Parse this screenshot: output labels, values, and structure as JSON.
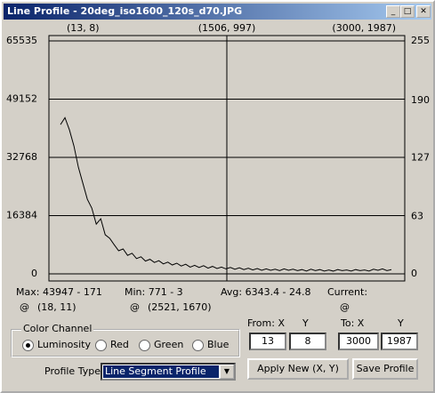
{
  "window": {
    "title": "Line Profile - 20deg_iso1600_120s_d70.JPG"
  },
  "chart_data": {
    "type": "line",
    "top_labels": [
      "(13, 8)",
      "(1506, 997)",
      "(3000, 1987)"
    ],
    "ylim": [
      0,
      65535
    ],
    "yticks": [
      0,
      16384,
      32768,
      49152,
      65535
    ],
    "y2lim": [
      0,
      255
    ],
    "y2ticks": [
      0,
      63,
      127,
      190,
      255
    ],
    "grid": true,
    "color": "#000000",
    "values": [
      42000,
      43947,
      40500,
      36000,
      30000,
      25500,
      21000,
      18500,
      14000,
      15500,
      11000,
      10000,
      8200,
      6500,
      7000,
      5200,
      5800,
      4300,
      4800,
      3600,
      4100,
      3200,
      3700,
      2800,
      3300,
      2500,
      3000,
      2200,
      2700,
      1900,
      2400,
      1800,
      2300,
      1600,
      2100,
      1500,
      1900,
      1400,
      1800,
      1300,
      1700,
      1200,
      1600,
      1100,
      1500,
      1000,
      1400,
      1000,
      1300,
      900,
      1400,
      1000,
      1300,
      900,
      1200,
      800,
      1300,
      900,
      1200,
      800,
      1100,
      771,
      1200,
      900,
      1100,
      800,
      1200,
      900,
      1100,
      800,
      1300,
      1000,
      1400,
      900,
      1200
    ]
  },
  "stats": {
    "max": "Max:  43947 - 171",
    "max_at": "@",
    "max_pos": "(18, 11)",
    "min": "Min:  771 - 3",
    "min_at": "@",
    "min_pos": "(2521, 1670)",
    "avg": "Avg:  6343.4 - 24.8",
    "current": "Current:",
    "current_at": "@"
  },
  "color_channel": {
    "label": "Color Channel",
    "options": [
      "Luminosity",
      "Red",
      "Green",
      "Blue"
    ],
    "selected": 0
  },
  "coordinates": {
    "from_label": "From:  X",
    "from_y_label": "Y",
    "to_label": "To:  X",
    "to_y_label": "Y",
    "from_x": "13",
    "from_y": "8",
    "to_x": "3000",
    "to_y": "1987"
  },
  "profile_type": {
    "label": "Profile Type:",
    "value": "Line Segment Profile"
  },
  "buttons": {
    "apply": "Apply New (X, Y)",
    "save": "Save Profile"
  }
}
